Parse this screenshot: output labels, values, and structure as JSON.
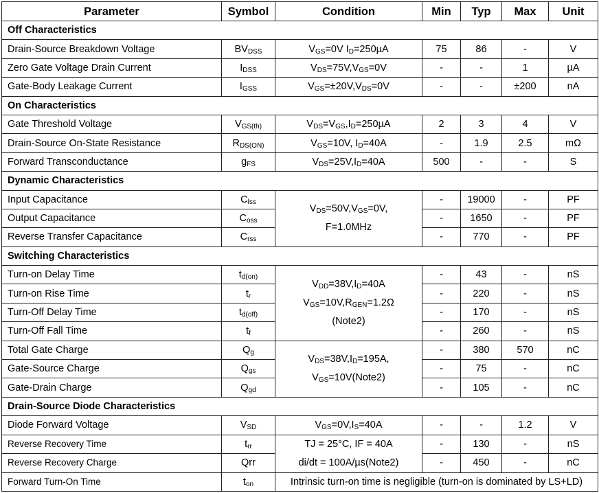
{
  "headers": [
    "Parameter",
    "Symbol",
    "Condition",
    "Min",
    "Typ",
    "Max",
    "Unit"
  ],
  "sections": [
    {
      "title": "Off Characteristics",
      "rows": [
        {
          "param": "Drain-Source Breakdown Voltage",
          "sym": [
            "BV",
            "DSS"
          ],
          "cond": [
            "V",
            "GS",
            "=0V I",
            "D",
            "=250µA"
          ],
          "min": "75",
          "typ": "86",
          "max": "-",
          "unit": "V"
        },
        {
          "param": "Zero Gate Voltage Drain Current",
          "sym": [
            "I",
            "DSS"
          ],
          "cond": [
            "V",
            "DS",
            "=75V,V",
            "GS",
            "=0V"
          ],
          "min": "-",
          "typ": "-",
          "max": "1",
          "unit": "µA"
        },
        {
          "param": "Gate-Body Leakage Current",
          "sym": [
            "I",
            "GSS"
          ],
          "cond": [
            "V",
            "GS",
            "=±20V,V",
            "DS",
            "=0V"
          ],
          "min": "-",
          "typ": "-",
          "max": "±200",
          "unit": "nA"
        }
      ]
    },
    {
      "title": "On Characteristics",
      "rows": [
        {
          "param": "Gate Threshold Voltage",
          "sym": [
            "V",
            "GS(th)"
          ],
          "cond": [
            "V",
            "DS",
            "=V",
            "GS",
            ",I",
            "D",
            "=250µA"
          ],
          "min": "2",
          "typ": "3",
          "max": "4",
          "unit": "V"
        },
        {
          "param": "Drain-Source On-State Resistance",
          "sym": [
            "R",
            "DS(ON)"
          ],
          "cond": [
            "V",
            "GS",
            "=10V, I",
            "D",
            "=40A"
          ],
          "min": "-",
          "typ": "1.9",
          "max": "2.5",
          "unit": "mΩ"
        },
        {
          "param": "Forward Transconductance",
          "sym": [
            "g",
            "FS"
          ],
          "cond": [
            "V",
            "DS",
            "=25V,I",
            "D",
            "=40A"
          ],
          "min": "500",
          "typ": "-",
          "max": "-",
          "unit": "S"
        }
      ]
    },
    {
      "title": "Dynamic Characteristics",
      "rows": [
        {
          "param": "Input Capacitance",
          "sym": [
            "C",
            "lss"
          ],
          "cond_lines": [
            [
              "V",
              "DS",
              "=50V,V",
              "GS",
              "=0V,"
            ],
            [
              "F=1.0MHz"
            ]
          ],
          "span": 3,
          "min": "-",
          "typ": "19000",
          "max": "-",
          "unit": "PF"
        },
        {
          "param": "Output Capacitance",
          "sym": [
            "C",
            "oss"
          ],
          "min": "-",
          "typ": "1650",
          "max": "-",
          "unit": "PF"
        },
        {
          "param": "Reverse Transfer Capacitance",
          "sym": [
            "C",
            "rss"
          ],
          "min": "-",
          "typ": "770",
          "max": "-",
          "unit": "PF"
        }
      ]
    },
    {
      "title": "Switching Characteristics",
      "rows": [
        {
          "param": "Turn-on Delay Time",
          "sym": [
            "t",
            "d(on)"
          ],
          "cond_lines": [
            [
              "V",
              "DD",
              "=38V,I",
              "D",
              "=40A"
            ],
            [
              "V",
              "GS",
              "=10V,R",
              "GEN",
              "=1.2Ω"
            ],
            [
              "(Note2)"
            ]
          ],
          "span": 4,
          "min": "-",
          "typ": "43",
          "max": "-",
          "unit": "nS"
        },
        {
          "param": "Turn-on Rise Time",
          "sym": [
            "t",
            "r"
          ],
          "min": "-",
          "typ": "220",
          "max": "-",
          "unit": "nS"
        },
        {
          "param": "Turn-Off Delay Time",
          "sym": [
            "t",
            "d(off)"
          ],
          "min": "-",
          "typ": "170",
          "max": "-",
          "unit": "nS"
        },
        {
          "param": "Turn-Off Fall Time",
          "sym": [
            "t",
            "f"
          ],
          "min": "-",
          "typ": "260",
          "max": "-",
          "unit": "nS"
        },
        {
          "param": "Total Gate Charge",
          "sym": [
            "Q",
            "g"
          ],
          "cond_lines": [
            [
              "V",
              "DS",
              "=38V,I",
              "D",
              "=195A,"
            ],
            [
              "V",
              "GS",
              "=10V(Note2)"
            ]
          ],
          "span": 3,
          "min": "-",
          "typ": "380",
          "max": "570",
          "unit": "nC"
        },
        {
          "param": "Gate-Source Charge",
          "sym": [
            "Q",
            "gs"
          ],
          "min": "-",
          "typ": "75",
          "max": "-",
          "unit": "nC"
        },
        {
          "param": "Gate-Drain Charge",
          "sym": [
            "Q",
            "gd"
          ],
          "min": "-",
          "typ": "105",
          "max": "-",
          "unit": "nC"
        }
      ]
    },
    {
      "title": "Drain-Source Diode Characteristics",
      "rows": [
        {
          "param": "Diode Forward Voltage",
          "sym": [
            "V",
            "SD"
          ],
          "cond": [
            "V",
            "GS",
            "=0V,I",
            "S",
            "=40A"
          ],
          "min": "-",
          "typ": "-",
          "max": "1.2",
          "unit": "V"
        },
        {
          "param": "Reverse Recovery Time",
          "small": true,
          "sym": [
            "t",
            "rr"
          ],
          "cond_lines": [
            [
              "TJ = 25°C, IF = 40A"
            ],
            [
              "di/dt = 100A/µs(Note2)"
            ]
          ],
          "span": 2,
          "min": "-",
          "typ": "130",
          "max": "-",
          "unit": "nS"
        },
        {
          "param": "Reverse Recovery Charge",
          "small": true,
          "sym": [
            "Qrr"
          ],
          "min": "-",
          "typ": "450",
          "max": "-",
          "unit": "nC"
        },
        {
          "param": "Forward Turn-On Time",
          "small": true,
          "sym": [
            "t",
            "on"
          ],
          "full": "Intrinsic turn-on time is negligible (turn-on is dominated by LS+LD)"
        }
      ]
    }
  ]
}
